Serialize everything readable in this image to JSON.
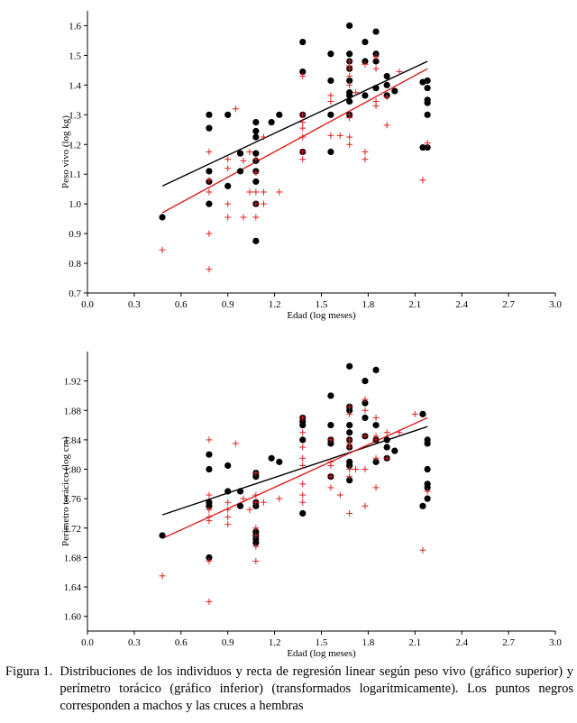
{
  "chart_data": [
    {
      "type": "scatter",
      "xlabel": "Edad (log meses)",
      "ylabel": "Peso vivo (log kg)",
      "xlim": [
        0.0,
        3.0
      ],
      "ylim": [
        0.7,
        1.65
      ],
      "xticks": [
        "0.0",
        "0.3",
        "0.6",
        "0.9",
        "1.2",
        "1.5",
        "1.8",
        "2.1",
        "2.4",
        "2.7",
        "3.0"
      ],
      "yticks": [
        "0.7",
        "0.8",
        "0.9",
        "1.0",
        "1.1",
        "1.2",
        "1.3",
        "1.4",
        "1.5",
        "1.6"
      ],
      "series": [
        {
          "marker": "dot",
          "color": "#000000",
          "points": [
            [
              0.48,
              0.955
            ],
            [
              0.78,
              1.3
            ],
            [
              0.78,
              1.255
            ],
            [
              0.78,
              1.11
            ],
            [
              0.78,
              1.075
            ],
            [
              0.78,
              1.0
            ],
            [
              0.9,
              1.3
            ],
            [
              0.9,
              1.06
            ],
            [
              0.98,
              1.17
            ],
            [
              0.98,
              1.11
            ],
            [
              1.08,
              1.275
            ],
            [
              1.08,
              1.245
            ],
            [
              1.08,
              1.225
            ],
            [
              1.08,
              1.17
            ],
            [
              1.08,
              1.145
            ],
            [
              1.08,
              1.11
            ],
            [
              1.08,
              1.075
            ],
            [
              1.08,
              1.0
            ],
            [
              1.08,
              0.875
            ],
            [
              1.18,
              1.275
            ],
            [
              1.23,
              1.3
            ],
            [
              1.38,
              1.545
            ],
            [
              1.38,
              1.445
            ],
            [
              1.38,
              1.3
            ],
            [
              1.38,
              1.175
            ],
            [
              1.56,
              1.505
            ],
            [
              1.56,
              1.415
            ],
            [
              1.56,
              1.3
            ],
            [
              1.56,
              1.175
            ],
            [
              1.68,
              1.6
            ],
            [
              1.68,
              1.505
            ],
            [
              1.68,
              1.48
            ],
            [
              1.68,
              1.455
            ],
            [
              1.68,
              1.415
            ],
            [
              1.68,
              1.375
            ],
            [
              1.68,
              1.365
            ],
            [
              1.68,
              1.345
            ],
            [
              1.68,
              1.3
            ],
            [
              1.78,
              1.545
            ],
            [
              1.78,
              1.48
            ],
            [
              1.78,
              1.365
            ],
            [
              1.85,
              1.58
            ],
            [
              1.85,
              1.505
            ],
            [
              1.85,
              1.48
            ],
            [
              1.85,
              1.39
            ],
            [
              1.92,
              1.43
            ],
            [
              1.92,
              1.4
            ],
            [
              1.92,
              1.365
            ],
            [
              1.97,
              1.38
            ],
            [
              2.15,
              1.41
            ],
            [
              2.15,
              1.19
            ],
            [
              2.18,
              1.415
            ],
            [
              2.18,
              1.39
            ],
            [
              2.18,
              1.35
            ],
            [
              2.18,
              1.34
            ],
            [
              2.18,
              1.3
            ],
            [
              2.18,
              1.19
            ]
          ]
        },
        {
          "marker": "cross",
          "color": "#e02020",
          "points": [
            [
              0.48,
              0.845
            ],
            [
              0.78,
              1.175
            ],
            [
              0.78,
              1.08
            ],
            [
              0.78,
              1.04
            ],
            [
              0.78,
              0.9
            ],
            [
              0.78,
              0.78
            ],
            [
              0.9,
              1.15
            ],
            [
              0.9,
              1.12
            ],
            [
              0.9,
              1.0
            ],
            [
              0.9,
              0.955
            ],
            [
              0.95,
              1.32
            ],
            [
              1.0,
              1.145
            ],
            [
              1.0,
              0.955
            ],
            [
              1.04,
              1.175
            ],
            [
              1.04,
              1.04
            ],
            [
              1.08,
              1.15
            ],
            [
              1.08,
              1.105
            ],
            [
              1.08,
              1.04
            ],
            [
              1.08,
              1.0
            ],
            [
              1.08,
              0.955
            ],
            [
              1.13,
              1.225
            ],
            [
              1.13,
              1.04
            ],
            [
              1.13,
              1.0
            ],
            [
              1.23,
              1.04
            ],
            [
              1.38,
              1.43
            ],
            [
              1.38,
              1.3
            ],
            [
              1.38,
              1.275
            ],
            [
              1.38,
              1.255
            ],
            [
              1.38,
              1.225
            ],
            [
              1.38,
              1.175
            ],
            [
              1.38,
              1.15
            ],
            [
              1.56,
              1.365
            ],
            [
              1.56,
              1.345
            ],
            [
              1.56,
              1.23
            ],
            [
              1.62,
              1.23
            ],
            [
              1.68,
              1.48
            ],
            [
              1.68,
              1.465
            ],
            [
              1.68,
              1.455
            ],
            [
              1.68,
              1.43
            ],
            [
              1.68,
              1.4
            ],
            [
              1.68,
              1.3
            ],
            [
              1.68,
              1.29
            ],
            [
              1.68,
              1.225
            ],
            [
              1.68,
              1.2
            ],
            [
              1.72,
              1.375
            ],
            [
              1.78,
              1.47
            ],
            [
              1.78,
              1.175
            ],
            [
              1.78,
              1.15
            ],
            [
              1.85,
              1.495
            ],
            [
              1.85,
              1.455
            ],
            [
              1.85,
              1.345
            ],
            [
              1.85,
              1.33
            ],
            [
              1.92,
              1.36
            ],
            [
              1.92,
              1.265
            ],
            [
              2.0,
              1.445
            ],
            [
              2.15,
              1.08
            ],
            [
              2.18,
              1.205
            ]
          ]
        }
      ],
      "fits": [
        {
          "color": "#000000",
          "x": [
            0.48,
            2.18
          ],
          "y": [
            1.06,
            1.48
          ]
        },
        {
          "color": "#e02020",
          "x": [
            0.48,
            2.18
          ],
          "y": [
            0.97,
            1.455
          ]
        }
      ]
    },
    {
      "type": "scatter",
      "xlabel": "Edad (log meses)",
      "ylabel": "Perímetro torácico (log cm)",
      "xlim": [
        0.0,
        3.0
      ],
      "ylim": [
        1.58,
        1.96
      ],
      "xticks": [
        "0.0",
        "0.3",
        "0.6",
        "0.9",
        "1.2",
        "1.5",
        "1.8",
        "2.1",
        "2.4",
        "2.7",
        "3.0"
      ],
      "yticks": [
        "1.60",
        "1.64",
        "1.68",
        "1.72",
        "1.76",
        "1.80",
        "1.84",
        "1.88",
        "1.92"
      ],
      "series": [
        {
          "marker": "dot",
          "color": "#000000",
          "points": [
            [
              0.48,
              1.71
            ],
            [
              0.78,
              1.82
            ],
            [
              0.78,
              1.8
            ],
            [
              0.78,
              1.755
            ],
            [
              0.78,
              1.75
            ],
            [
              0.78,
              1.68
            ],
            [
              0.9,
              1.805
            ],
            [
              0.9,
              1.77
            ],
            [
              0.98,
              1.77
            ],
            [
              0.98,
              1.75
            ],
            [
              1.08,
              1.795
            ],
            [
              1.08,
              1.79
            ],
            [
              1.08,
              1.755
            ],
            [
              1.08,
              1.75
            ],
            [
              1.08,
              1.715
            ],
            [
              1.08,
              1.71
            ],
            [
              1.08,
              1.705
            ],
            [
              1.08,
              1.7
            ],
            [
              1.18,
              1.815
            ],
            [
              1.23,
              1.81
            ],
            [
              1.38,
              1.87
            ],
            [
              1.38,
              1.865
            ],
            [
              1.38,
              1.86
            ],
            [
              1.38,
              1.84
            ],
            [
              1.38,
              1.74
            ],
            [
              1.56,
              1.9
            ],
            [
              1.56,
              1.86
            ],
            [
              1.56,
              1.84
            ],
            [
              1.56,
              1.835
            ],
            [
              1.56,
              1.79
            ],
            [
              1.68,
              1.94
            ],
            [
              1.68,
              1.885
            ],
            [
              1.68,
              1.88
            ],
            [
              1.68,
              1.86
            ],
            [
              1.68,
              1.85
            ],
            [
              1.68,
              1.84
            ],
            [
              1.68,
              1.83
            ],
            [
              1.68,
              1.81
            ],
            [
              1.68,
              1.805
            ],
            [
              1.68,
              1.785
            ],
            [
              1.78,
              1.92
            ],
            [
              1.78,
              1.89
            ],
            [
              1.78,
              1.87
            ],
            [
              1.78,
              1.845
            ],
            [
              1.85,
              1.935
            ],
            [
              1.85,
              1.86
            ],
            [
              1.85,
              1.84
            ],
            [
              1.85,
              1.81
            ],
            [
              1.92,
              1.84
            ],
            [
              1.92,
              1.83
            ],
            [
              1.92,
              1.815
            ],
            [
              1.97,
              1.825
            ],
            [
              2.15,
              1.875
            ],
            [
              2.15,
              1.75
            ],
            [
              2.18,
              1.84
            ],
            [
              2.18,
              1.835
            ],
            [
              2.18,
              1.8
            ],
            [
              2.18,
              1.78
            ],
            [
              2.18,
              1.775
            ],
            [
              2.18,
              1.76
            ]
          ]
        },
        {
          "marker": "cross",
          "color": "#e02020",
          "points": [
            [
              0.48,
              1.655
            ],
            [
              0.78,
              1.84
            ],
            [
              0.78,
              1.765
            ],
            [
              0.78,
              1.745
            ],
            [
              0.78,
              1.735
            ],
            [
              0.78,
              1.73
            ],
            [
              0.78,
              1.675
            ],
            [
              0.78,
              1.62
            ],
            [
              0.9,
              1.755
            ],
            [
              0.9,
              1.745
            ],
            [
              0.9,
              1.735
            ],
            [
              0.9,
              1.725
            ],
            [
              0.95,
              1.835
            ],
            [
              1.0,
              1.76
            ],
            [
              1.04,
              1.745
            ],
            [
              1.08,
              1.795
            ],
            [
              1.08,
              1.765
            ],
            [
              1.08,
              1.755
            ],
            [
              1.08,
              1.72
            ],
            [
              1.08,
              1.71
            ],
            [
              1.08,
              1.695
            ],
            [
              1.08,
              1.675
            ],
            [
              1.13,
              1.755
            ],
            [
              1.23,
              1.76
            ],
            [
              1.38,
              1.87
            ],
            [
              1.38,
              1.85
            ],
            [
              1.38,
              1.83
            ],
            [
              1.38,
              1.815
            ],
            [
              1.38,
              1.805
            ],
            [
              1.38,
              1.78
            ],
            [
              1.38,
              1.765
            ],
            [
              1.38,
              1.755
            ],
            [
              1.56,
              1.84
            ],
            [
              1.56,
              1.81
            ],
            [
              1.56,
              1.805
            ],
            [
              1.56,
              1.79
            ],
            [
              1.56,
              1.775
            ],
            [
              1.62,
              1.765
            ],
            [
              1.68,
              1.885
            ],
            [
              1.68,
              1.875
            ],
            [
              1.68,
              1.84
            ],
            [
              1.68,
              1.835
            ],
            [
              1.68,
              1.83
            ],
            [
              1.68,
              1.8
            ],
            [
              1.68,
              1.79
            ],
            [
              1.68,
              1.74
            ],
            [
              1.72,
              1.8
            ],
            [
              1.78,
              1.895
            ],
            [
              1.78,
              1.88
            ],
            [
              1.78,
              1.845
            ],
            [
              1.78,
              1.8
            ],
            [
              1.78,
              1.75
            ],
            [
              1.85,
              1.87
            ],
            [
              1.85,
              1.845
            ],
            [
              1.85,
              1.84
            ],
            [
              1.85,
              1.815
            ],
            [
              1.85,
              1.775
            ],
            [
              1.92,
              1.85
            ],
            [
              1.92,
              1.815
            ],
            [
              2.0,
              1.85
            ],
            [
              2.1,
              1.875
            ],
            [
              2.15,
              1.69
            ],
            [
              2.18,
              1.77
            ]
          ]
        }
      ],
      "fits": [
        {
          "color": "#000000",
          "x": [
            0.48,
            2.18
          ],
          "y": [
            1.738,
            1.858
          ]
        },
        {
          "color": "#e02020",
          "x": [
            0.48,
            2.18
          ],
          "y": [
            1.706,
            1.87
          ]
        }
      ]
    }
  ],
  "caption": {
    "lead": "Figura 1.",
    "text": "Distribuciones de los individuos y recta de regresión linear según peso vivo (gráfico superior) y perímetro torácico (gráfico inferior) (transformados logarítmicamente). Los puntos negros corresponden a machos y las cruces a hembras"
  }
}
